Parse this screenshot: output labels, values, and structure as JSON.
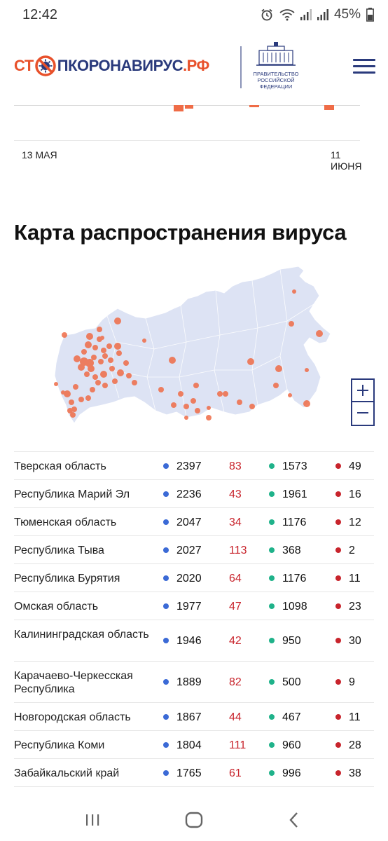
{
  "status_bar": {
    "time": "12:42",
    "battery": "45%",
    "icons": [
      "alarm-icon",
      "wifi-icon",
      "signal-icon",
      "signal-icon",
      "battery-icon"
    ]
  },
  "header": {
    "logo_part1": "СТ",
    "logo_part2": "ПКОРОНАВИРУС",
    "logo_part3": ".РФ",
    "gov_line1": "ПРАВИТЕЛЬСТВО",
    "gov_line2": "РОССИЙСКОЙ",
    "gov_line3": "ФЕДЕРАЦИИ",
    "menu_icon": "hamburger-menu-icon"
  },
  "chart": {
    "x_start": "13 МАЯ",
    "x_end": "11 ИЮНЯ",
    "bar_color": "#ef6c47"
  },
  "map_section": {
    "title": "Карта распространения вируса",
    "zoom_in_icon": "plus-icon",
    "zoom_out_icon": "minus-icon",
    "land_color": "#dde3f4",
    "marker_color": "#ef6c47"
  },
  "stats": {
    "colors": {
      "confirmed": "#3b6ad6",
      "new": "#c8242c",
      "recovered": "#1fb28a",
      "deaths": "#c8242c"
    },
    "rows": [
      {
        "region": "Тверская область",
        "confirmed": "2397",
        "new": "83",
        "recovered": "1573",
        "deaths": "49"
      },
      {
        "region": "Республика Марий Эл",
        "confirmed": "2236",
        "new": "43",
        "recovered": "1961",
        "deaths": "16"
      },
      {
        "region": "Тюменская область",
        "confirmed": "2047",
        "new": "34",
        "recovered": "1176",
        "deaths": "12"
      },
      {
        "region": "Республика Тыва",
        "confirmed": "2027",
        "new": "113",
        "recovered": "368",
        "deaths": "2"
      },
      {
        "region": "Республика Бурятия",
        "confirmed": "2020",
        "new": "64",
        "recovered": "1176",
        "deaths": "11"
      },
      {
        "region": "Омская область",
        "confirmed": "1977",
        "new": "47",
        "recovered": "1098",
        "deaths": "23"
      },
      {
        "region": "Калининградская область",
        "confirmed": "1946",
        "new": "42",
        "recovered": "950",
        "deaths": "30"
      },
      {
        "region": "Карачаево-Черкесская Республика",
        "confirmed": "1889",
        "new": "82",
        "recovered": "500",
        "deaths": "9"
      },
      {
        "region": "Новгородская область",
        "confirmed": "1867",
        "new": "44",
        "recovered": "467",
        "deaths": "11"
      },
      {
        "region": "Республика Коми",
        "confirmed": "1804",
        "new": "111",
        "recovered": "960",
        "deaths": "28"
      },
      {
        "region": "Забайкальский край",
        "confirmed": "1765",
        "new": "61",
        "recovered": "996",
        "deaths": "38"
      }
    ]
  },
  "navbar": {
    "recents_icon": "recent-apps-icon",
    "home_icon": "home-icon",
    "back_icon": "back-icon"
  }
}
